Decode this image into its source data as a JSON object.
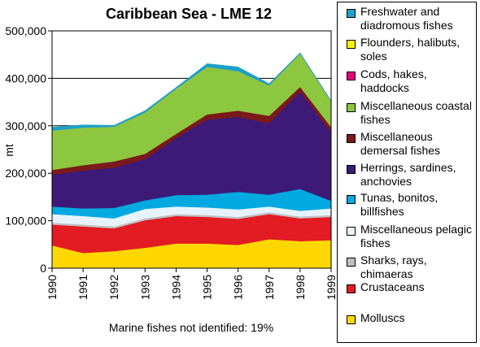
{
  "chart_data": {
    "type": "area",
    "stacked": true,
    "title": "Caribbean Sea - LME 12",
    "xlabel": "",
    "ylabel": "mt",
    "x": [
      "1990",
      "1991",
      "1992",
      "1993",
      "1994",
      "1995",
      "1996",
      "1997",
      "1998",
      "1999"
    ],
    "ylim": [
      0,
      500000
    ],
    "yticks": [
      "0",
      "100,000",
      "200,000",
      "300,000",
      "400,000",
      "500,000"
    ],
    "grid": "horizontal",
    "footnote": "Marine fishes not identified: 19%",
    "series": [
      {
        "name": "Molluscs",
        "color": "#FFD700",
        "values": [
          48000,
          32000,
          36000,
          43000,
          52000,
          52000,
          49000,
          61000,
          57000,
          59000
        ]
      },
      {
        "name": "Crustaceans",
        "color": "#E31B23",
        "values": [
          44000,
          56000,
          48000,
          58000,
          58000,
          56000,
          55000,
          53000,
          48000,
          49000
        ]
      },
      {
        "name": "Sharks, rays, chimaeras",
        "color": "#C0C0C0",
        "values": [
          4000,
          4000,
          4000,
          4000,
          4000,
          4000,
          4000,
          4000,
          4000,
          4000
        ]
      },
      {
        "name": "Miscellaneous pelagic fishes",
        "color": "#E6F3FB",
        "values": [
          18000,
          18000,
          17000,
          20000,
          16000,
          16000,
          16000,
          12000,
          12000,
          14000
        ]
      },
      {
        "name": "Tunas, bonitos, billfishes",
        "color": "#00A9E0",
        "values": [
          16000,
          16000,
          22000,
          18000,
          24000,
          27000,
          37000,
          25000,
          46000,
          16000
        ]
      },
      {
        "name": "Herrings, sardines, anchovies",
        "color": "#3D1A78",
        "values": [
          67000,
          80000,
          85000,
          87000,
          120000,
          158000,
          158000,
          150000,
          205000,
          144000
        ]
      },
      {
        "name": "Miscellaneous demersal fishes",
        "color": "#7B1A1A",
        "values": [
          10000,
          11000,
          13000,
          11000,
          9000,
          11000,
          13000,
          16000,
          10000,
          11000
        ]
      },
      {
        "name": "Miscellaneous coastal fishes",
        "color": "#8DC63F",
        "values": [
          83000,
          79000,
          73000,
          87000,
          95000,
          100000,
          83000,
          64000,
          70000,
          54000
        ]
      },
      {
        "name": "Cods, hakes, haddocks",
        "color": "#E6007E",
        "values": [
          0,
          0,
          0,
          0,
          0,
          0,
          0,
          0,
          0,
          0
        ]
      },
      {
        "name": "Flounders, halibuts, soles",
        "color": "#FFF200",
        "values": [
          0,
          0,
          0,
          0,
          0,
          0,
          0,
          0,
          0,
          0
        ]
      },
      {
        "name": "Freshwater and diadromous fishes",
        "color": "#1BA1C9",
        "values": [
          7000,
          6000,
          3000,
          4000,
          3000,
          7000,
          9000,
          4000,
          2000,
          2000
        ]
      }
    ]
  },
  "legend": {
    "items": [
      {
        "key": "freshwater",
        "lines": [
          "Freshwater and",
          "diadromous fishes"
        ],
        "color": "#1BA1C9"
      },
      {
        "key": "flounders",
        "lines": [
          "Flounders, halibuts,",
          "soles"
        ],
        "color": "#FFF200"
      },
      {
        "key": "cods",
        "lines": [
          "Cods, hakes,",
          "haddocks"
        ],
        "color": "#E6007E"
      },
      {
        "key": "misc-coastal",
        "lines": [
          "Miscellaneous coastal",
          "fishes"
        ],
        "color": "#8DC63F"
      },
      {
        "key": "misc-demersal",
        "lines": [
          "Miscellaneous",
          "demersal fishes"
        ],
        "color": "#7B1A1A"
      },
      {
        "key": "herrings",
        "lines": [
          "Herrings, sardines,",
          "anchovies"
        ],
        "color": "#3D1A78"
      },
      {
        "key": "tunas",
        "lines": [
          "Tunas, bonitos,",
          "billfishes"
        ],
        "color": "#00A9E0"
      },
      {
        "key": "misc-pelagic",
        "lines": [
          "Miscellaneous pelagic",
          "fishes"
        ],
        "color": "#E6F3FB"
      },
      {
        "key": "sharks",
        "lines": [
          "Sharks, rays,",
          "chimaeras"
        ],
        "color": "#C0C0C0"
      },
      {
        "key": "crustaceans",
        "lines": [
          "Crustaceans"
        ],
        "color": "#E31B23"
      },
      {
        "key": "molluscs",
        "lines": [
          "Molluscs"
        ],
        "color": "#FFD700"
      }
    ]
  }
}
